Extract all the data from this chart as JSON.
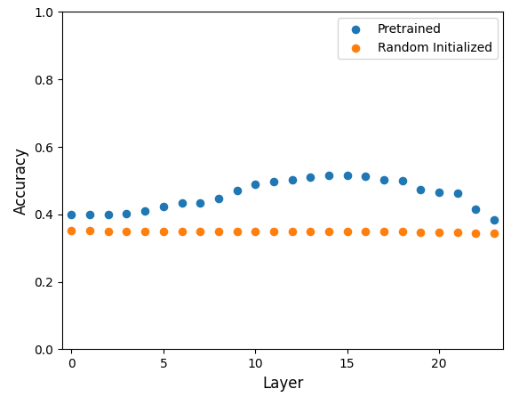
{
  "layers": [
    0,
    1,
    2,
    3,
    4,
    5,
    6,
    7,
    8,
    9,
    10,
    11,
    12,
    13,
    14,
    15,
    16,
    17,
    18,
    19,
    20,
    21,
    22,
    23
  ],
  "pretrained": [
    0.4,
    0.4,
    0.4,
    0.401,
    0.41,
    0.422,
    0.433,
    0.435,
    0.447,
    0.47,
    0.49,
    0.498,
    0.502,
    0.51,
    0.515,
    0.515,
    0.512,
    0.502,
    0.5,
    0.473,
    0.465,
    0.462,
    0.415,
    0.385
  ],
  "random": [
    0.352,
    0.352,
    0.35,
    0.35,
    0.35,
    0.35,
    0.35,
    0.35,
    0.35,
    0.35,
    0.35,
    0.35,
    0.35,
    0.35,
    0.35,
    0.35,
    0.35,
    0.35,
    0.35,
    0.348,
    0.348,
    0.347,
    0.345,
    0.343
  ],
  "pretrained_color": "#1f77b4",
  "random_color": "#ff7f0e",
  "pretrained_label": "Pretrained",
  "random_label": "Random Initialized",
  "xlabel": "Layer",
  "ylabel": "Accuracy",
  "ylim": [
    0.0,
    1.0
  ],
  "xlim": [
    -0.5,
    23.5
  ],
  "markersize": 35,
  "figsize": [
    5.84,
    4.46
  ],
  "dpi": 100
}
